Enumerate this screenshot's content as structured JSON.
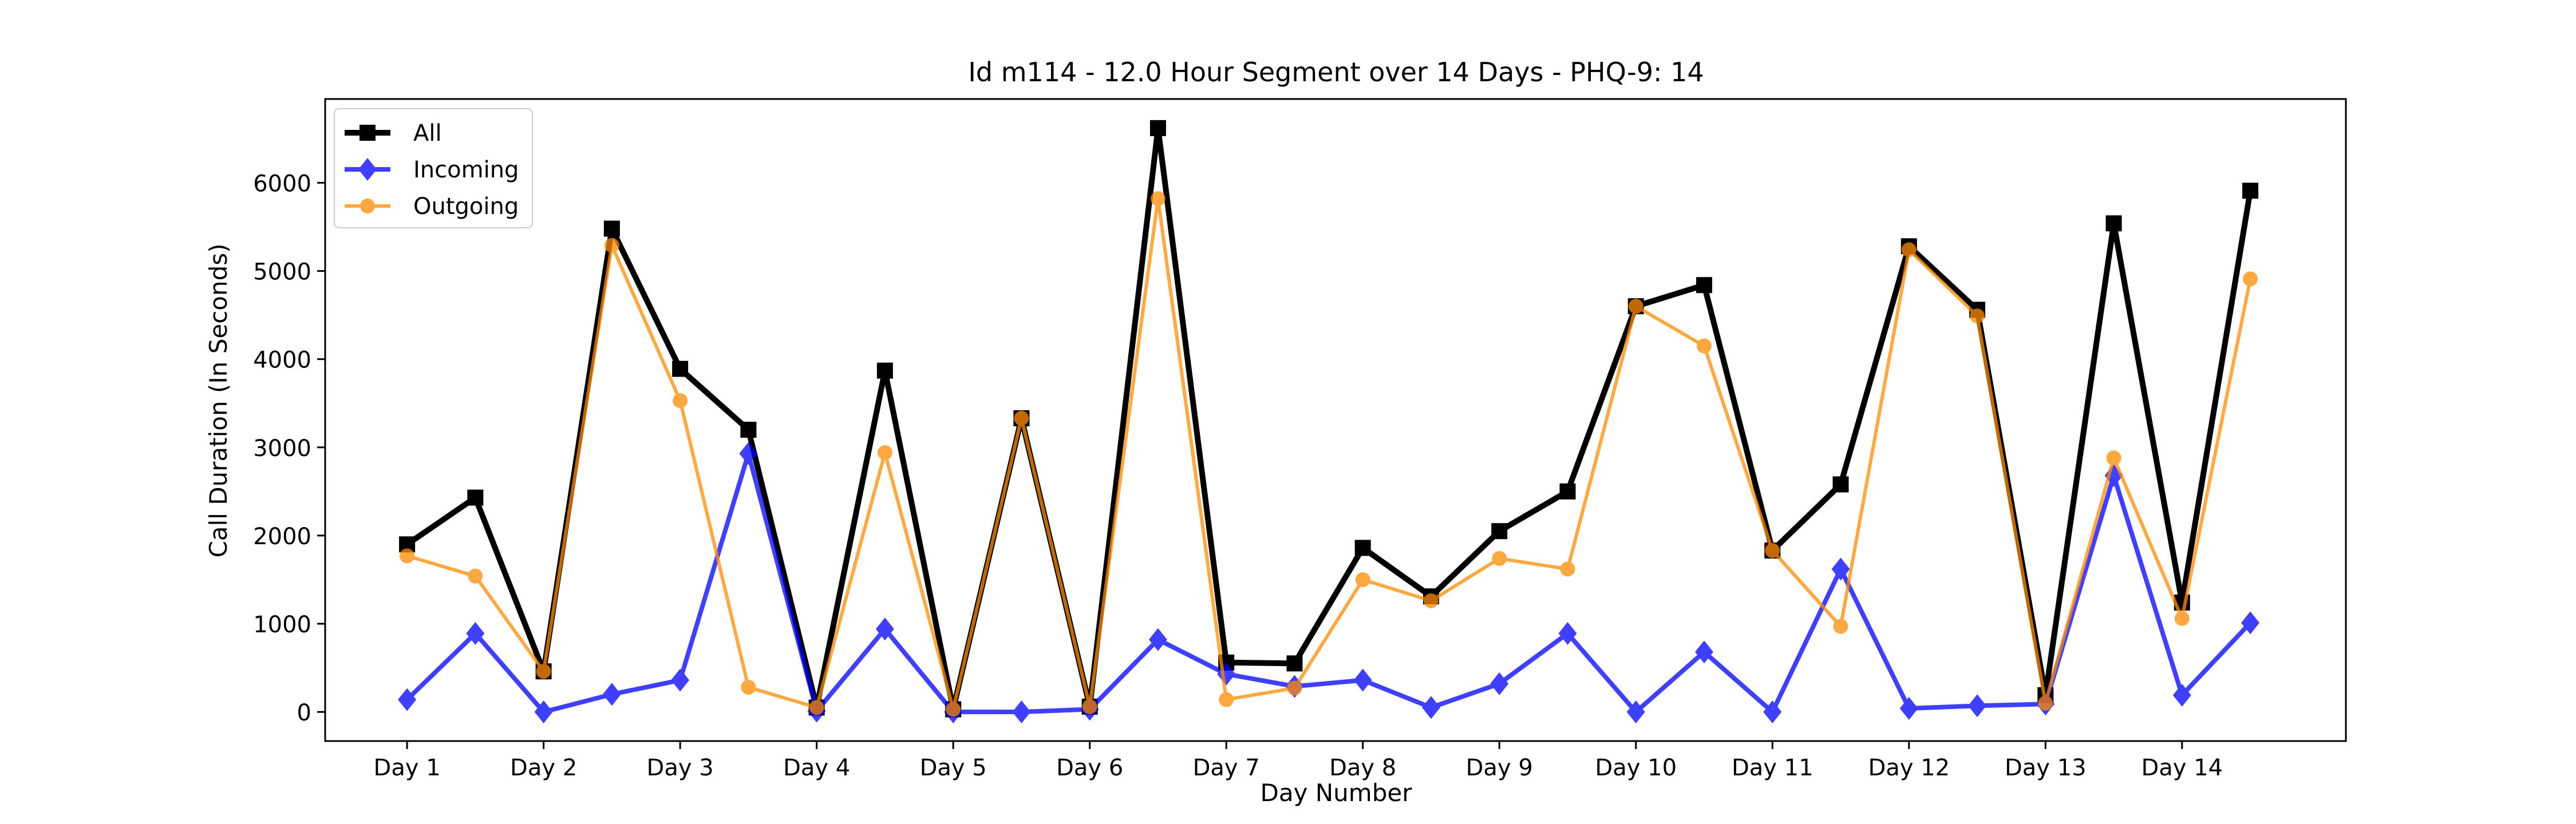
{
  "chart_data": {
    "type": "line",
    "title": "Id m114 - 12.0 Hour Segment over 14 Days - PHQ-9: 14",
    "xlabel": "Day Number",
    "ylabel": "Call Duration (In Seconds)",
    "x_tick_labels": [
      "Day 1",
      "Day 2",
      "Day 3",
      "Day 4",
      "Day 5",
      "Day 6",
      "Day 7",
      "Day 8",
      "Day 9",
      "Day 10",
      "Day 11",
      "Day 12",
      "Day 13",
      "Day 14"
    ],
    "y_ticks": [
      0,
      1000,
      2000,
      3000,
      4000,
      5000,
      6000
    ],
    "ylim": [
      -330,
      6950
    ],
    "xlim": [
      0.4,
      15.2
    ],
    "x": [
      1,
      1.5,
      2,
      2.5,
      3,
      3.5,
      4,
      4.5,
      5,
      5.5,
      6,
      6.5,
      7,
      7.5,
      8,
      8.5,
      9,
      9.5,
      10,
      10.5,
      11,
      11.5,
      12,
      12.5,
      13,
      13.5,
      14,
      14.5
    ],
    "grid": false,
    "legend_position": "top-left",
    "series": [
      {
        "name": "All",
        "color": "#000000",
        "marker": "square",
        "values": [
          1900,
          2430,
          460,
          5480,
          3890,
          3200,
          50,
          3870,
          30,
          3330,
          60,
          6620,
          560,
          550,
          1860,
          1310,
          2050,
          2500,
          4600,
          4840,
          1830,
          2580,
          5280,
          4560,
          190,
          5540,
          1240,
          5910
        ]
      },
      {
        "name": "Incoming",
        "color": "#0000ff",
        "marker": "diamond",
        "values": [
          140,
          890,
          0,
          200,
          360,
          2930,
          10,
          940,
          0,
          0,
          30,
          820,
          430,
          290,
          360,
          50,
          320,
          890,
          0,
          680,
          0,
          1620,
          40,
          70,
          90,
          2680,
          190,
          1010
        ]
      },
      {
        "name": "Outgoing",
        "color": "#ff8c00",
        "marker": "circle",
        "values": [
          1770,
          1540,
          460,
          5290,
          3530,
          280,
          50,
          2940,
          30,
          3330,
          60,
          5820,
          140,
          270,
          1500,
          1260,
          1740,
          1620,
          4600,
          4150,
          1830,
          970,
          5240,
          4490,
          100,
          2880,
          1060,
          4910
        ]
      }
    ]
  }
}
